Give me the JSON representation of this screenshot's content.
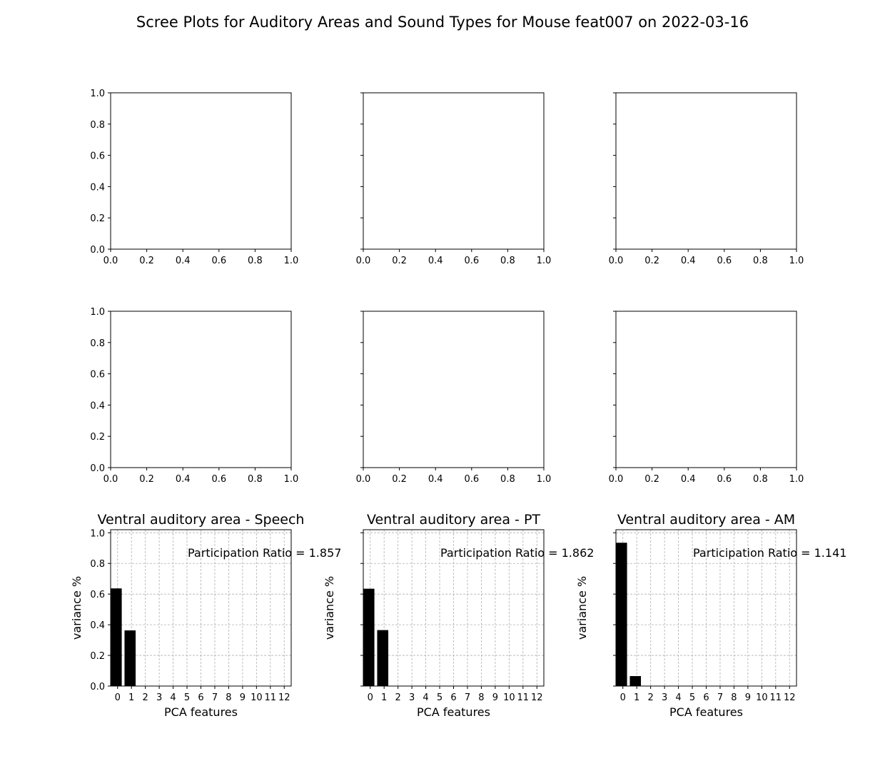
{
  "figure": {
    "title": "Scree Plots for Auditory Areas and Sound Types for Mouse feat007 on 2022-03-16"
  },
  "chart_data": [
    {
      "type": "bar",
      "row": 0,
      "col": 0,
      "empty": true,
      "xlim": [
        0,
        1
      ],
      "ylim": [
        0,
        1
      ],
      "xticks": [
        "0.0",
        "0.2",
        "0.4",
        "0.6",
        "0.8",
        "1.0"
      ],
      "yticks": [
        "0.0",
        "0.2",
        "0.4",
        "0.6",
        "0.8",
        "1.0"
      ],
      "show_ytick_labels": true
    },
    {
      "type": "bar",
      "row": 0,
      "col": 1,
      "empty": true,
      "xlim": [
        0,
        1
      ],
      "ylim": [
        0,
        1
      ],
      "xticks": [
        "0.0",
        "0.2",
        "0.4",
        "0.6",
        "0.8",
        "1.0"
      ],
      "yticks": [
        "0.0",
        "0.2",
        "0.4",
        "0.6",
        "0.8",
        "1.0"
      ],
      "show_ytick_labels": false
    },
    {
      "type": "bar",
      "row": 0,
      "col": 2,
      "empty": true,
      "xlim": [
        0,
        1
      ],
      "ylim": [
        0,
        1
      ],
      "xticks": [
        "0.0",
        "0.2",
        "0.4",
        "0.6",
        "0.8",
        "1.0"
      ],
      "yticks": [
        "0.0",
        "0.2",
        "0.4",
        "0.6",
        "0.8",
        "1.0"
      ],
      "show_ytick_labels": false
    },
    {
      "type": "bar",
      "row": 1,
      "col": 0,
      "empty": true,
      "xlim": [
        0,
        1
      ],
      "ylim": [
        0,
        1
      ],
      "xticks": [
        "0.0",
        "0.2",
        "0.4",
        "0.6",
        "0.8",
        "1.0"
      ],
      "yticks": [
        "0.0",
        "0.2",
        "0.4",
        "0.6",
        "0.8",
        "1.0"
      ],
      "show_ytick_labels": true
    },
    {
      "type": "bar",
      "row": 1,
      "col": 1,
      "empty": true,
      "xlim": [
        0,
        1
      ],
      "ylim": [
        0,
        1
      ],
      "xticks": [
        "0.0",
        "0.2",
        "0.4",
        "0.6",
        "0.8",
        "1.0"
      ],
      "yticks": [
        "0.0",
        "0.2",
        "0.4",
        "0.6",
        "0.8",
        "1.0"
      ],
      "show_ytick_labels": false
    },
    {
      "type": "bar",
      "row": 1,
      "col": 2,
      "empty": true,
      "xlim": [
        0,
        1
      ],
      "ylim": [
        0,
        1
      ],
      "xticks": [
        "0.0",
        "0.2",
        "0.4",
        "0.6",
        "0.8",
        "1.0"
      ],
      "yticks": [
        "0.0",
        "0.2",
        "0.4",
        "0.6",
        "0.8",
        "1.0"
      ],
      "show_ytick_labels": false
    },
    {
      "type": "bar",
      "row": 2,
      "col": 0,
      "empty": false,
      "title": "Ventral auditory area - Speech",
      "annotation": "Participation Ratio = 1.857",
      "xlabel": "PCA features",
      "ylabel": "variance %",
      "categories": [
        0,
        1
      ],
      "values": [
        0.637,
        0.363
      ],
      "xlim": [
        0,
        13
      ],
      "ylim": [
        0,
        1.02
      ],
      "xticks": [
        "0",
        "1",
        "2",
        "3",
        "4",
        "5",
        "6",
        "7",
        "8",
        "9",
        "10",
        "11",
        "12"
      ],
      "yticks": [
        "0.0",
        "0.2",
        "0.4",
        "0.6",
        "0.8",
        "1.0"
      ],
      "show_ytick_labels": true,
      "grid": true
    },
    {
      "type": "bar",
      "row": 2,
      "col": 1,
      "empty": false,
      "title": "Ventral auditory area - PT",
      "annotation": "Participation Ratio = 1.862",
      "xlabel": "PCA features",
      "ylabel": "variance %",
      "categories": [
        0,
        1
      ],
      "values": [
        0.635,
        0.365
      ],
      "xlim": [
        0,
        13
      ],
      "ylim": [
        0,
        1.02
      ],
      "xticks": [
        "0",
        "1",
        "2",
        "3",
        "4",
        "5",
        "6",
        "7",
        "8",
        "9",
        "10",
        "11",
        "12"
      ],
      "yticks": [
        "0.0",
        "0.2",
        "0.4",
        "0.6",
        "0.8",
        "1.0"
      ],
      "show_ytick_labels": false,
      "grid": true
    },
    {
      "type": "bar",
      "row": 2,
      "col": 2,
      "empty": false,
      "title": "Ventral auditory area - AM",
      "annotation": "Participation Ratio = 1.141",
      "xlabel": "PCA features",
      "ylabel": "variance %",
      "categories": [
        0,
        1
      ],
      "values": [
        0.935,
        0.065
      ],
      "xlim": [
        0,
        13
      ],
      "ylim": [
        0,
        1.02
      ],
      "xticks": [
        "0",
        "1",
        "2",
        "3",
        "4",
        "5",
        "6",
        "7",
        "8",
        "9",
        "10",
        "11",
        "12"
      ],
      "yticks": [
        "0.0",
        "0.2",
        "0.4",
        "0.6",
        "0.8",
        "1.0"
      ],
      "show_ytick_labels": false,
      "grid": true
    }
  ],
  "colors": {
    "bar": "#000000",
    "grid": "#b0b0b0",
    "axes": "#000000",
    "background": "#ffffff"
  }
}
